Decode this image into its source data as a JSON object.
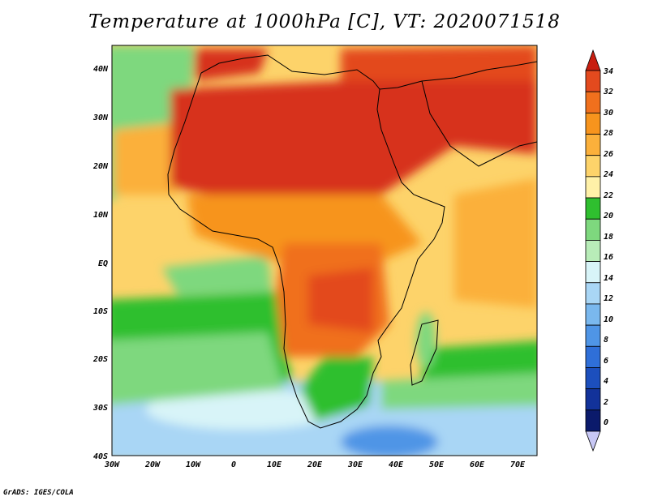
{
  "title": "Temperature at 1000hPa [C], VT: 2020071518",
  "credit": "GrADS: IGES/COLA",
  "lat_labels": [
    "40N",
    "30N",
    "20N",
    "10N",
    "EQ",
    "10S",
    "20S",
    "30S",
    "40S"
  ],
  "lon_labels": [
    "30W",
    "20W",
    "10W",
    "0",
    "10E",
    "20E",
    "30E",
    "40E",
    "50E",
    "60E",
    "70E"
  ],
  "colorbar": {
    "labels": [
      "34",
      "32",
      "30",
      "28",
      "26",
      "24",
      "22",
      "20",
      "18",
      "16",
      "14",
      "12",
      "10",
      "8",
      "6",
      "4",
      "2",
      "0"
    ],
    "colors": [
      "#d7301f",
      "#e34a1e",
      "#f0701d",
      "#f7941d",
      "#fbb03b",
      "#fdd36a",
      "#fff1a8",
      "#2fbf2f",
      "#7ed87e",
      "#b8ecb8",
      "#d8f4f8",
      "#a9d6f5",
      "#7ab8ee",
      "#4f95e6",
      "#2f6fd8",
      "#1c4fbd",
      "#12329a",
      "#0b1a6b"
    ],
    "top_arrow_color": "#c81e10",
    "bottom_arrow_color": "#c8c8f5"
  },
  "region": {
    "lon_min": -30,
    "lon_max": 75,
    "lat_min": -40,
    "lat_max": 45
  }
}
